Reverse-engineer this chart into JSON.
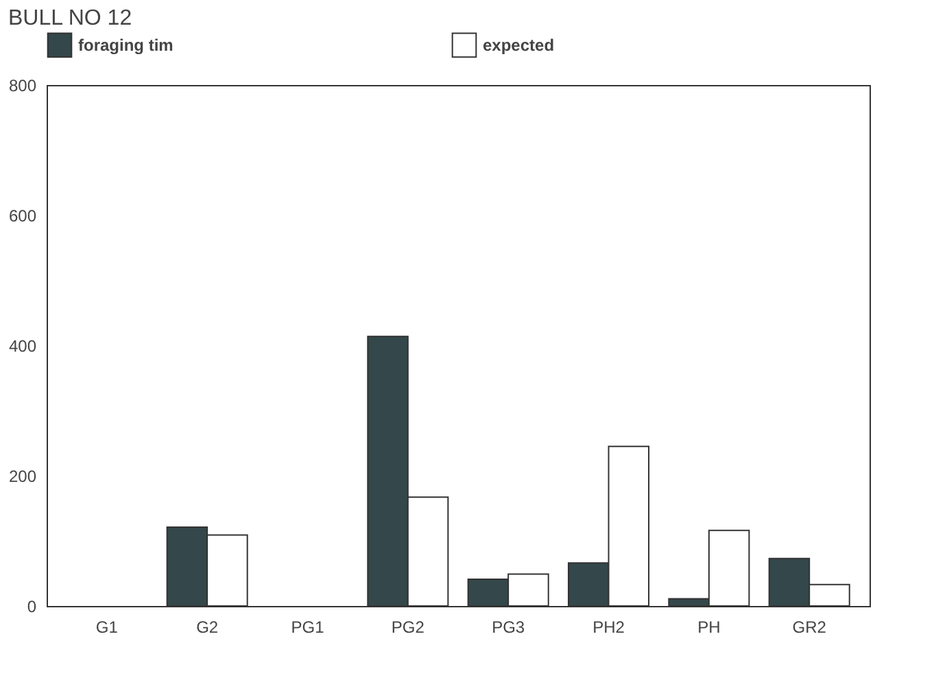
{
  "chart_data": {
    "type": "bar",
    "title": "BULL NO 12",
    "categories": [
      "G1",
      "G2",
      "PG1",
      "PG2",
      "PG3",
      "PH2",
      "PH",
      "GR2"
    ],
    "series": [
      {
        "name": "foraging tim",
        "color": "#34474a",
        "values": [
          0,
          121,
          0,
          414,
          41,
          66,
          11,
          73
        ]
      },
      {
        "name": "expected",
        "color": "#ffffff",
        "values": [
          0,
          109,
          0,
          167,
          49,
          245,
          116,
          33
        ]
      }
    ],
    "ylim": [
      0,
      800
    ],
    "yticks": [
      0,
      200,
      400,
      600,
      800
    ],
    "grid": false,
    "legend": "top left"
  }
}
